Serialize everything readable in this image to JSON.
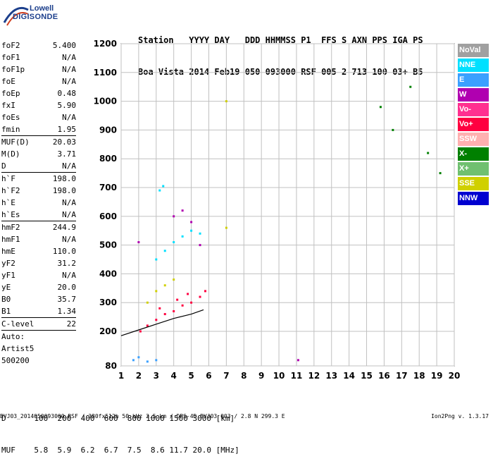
{
  "logo": {
    "line1": "Lowell",
    "line2": "DIGISONDE"
  },
  "header": {
    "line1": "Station   YYYY DAY   DDD HHMMSS P1  FFS S AXN PPS IGA PS",
    "line2": "Boa Vista 2014 Feb19 050 093000 RSF 005 2 713 100 03+ B5"
  },
  "params": [
    {
      "k": "foF2",
      "v": "5.400",
      "sep": false
    },
    {
      "k": "foF1",
      "v": "N/A",
      "sep": false
    },
    {
      "k": "foF1p",
      "v": "N/A",
      "sep": false
    },
    {
      "k": "foE",
      "v": "N/A",
      "sep": false
    },
    {
      "k": "foEp",
      "v": "0.48",
      "sep": false
    },
    {
      "k": "fxI",
      "v": "5.90",
      "sep": false
    },
    {
      "k": "foEs",
      "v": "N/A",
      "sep": false
    },
    {
      "k": "fmin",
      "v": "1.95",
      "sep": true
    },
    {
      "k": "MUF(D)",
      "v": "20.03",
      "sep": false
    },
    {
      "k": "M(D)",
      "v": "3.71",
      "sep": false
    },
    {
      "k": "D",
      "v": "N/A",
      "sep": true
    },
    {
      "k": "h`F",
      "v": "198.0",
      "sep": false
    },
    {
      "k": "h`F2",
      "v": "198.0",
      "sep": false
    },
    {
      "k": "h`E",
      "v": "N/A",
      "sep": false
    },
    {
      "k": "h`Es",
      "v": "N/A",
      "sep": true
    },
    {
      "k": "hmF2",
      "v": "244.9",
      "sep": false
    },
    {
      "k": "hmF1",
      "v": "N/A",
      "sep": false
    },
    {
      "k": "hmE",
      "v": "110.0",
      "sep": false
    },
    {
      "k": "yF2",
      "v": "31.2",
      "sep": false
    },
    {
      "k": "yF1",
      "v": "N/A",
      "sep": false
    },
    {
      "k": "yE",
      "v": "20.0",
      "sep": false
    },
    {
      "k": "B0",
      "v": "35.7",
      "sep": false
    },
    {
      "k": "B1",
      "v": "1.34",
      "sep": true
    },
    {
      "k": "C-level",
      "v": "22",
      "sep": true
    }
  ],
  "auto": {
    "l1": "Auto:",
    "l2": "Artist5",
    "l3": "500200"
  },
  "legend": [
    {
      "label": "NoVal",
      "color": "#a0a0a0"
    },
    {
      "label": "NNE",
      "color": "#00e0ff"
    },
    {
      "label": "E",
      "color": "#3aa0ff"
    },
    {
      "label": "W",
      "color": "#b000b0"
    },
    {
      "label": "Vo-",
      "color": "#ff3090"
    },
    {
      "label": "Vo+",
      "color": "#ff0040"
    },
    {
      "label": "SSW",
      "color": "#ffb0b0"
    },
    {
      "label": "X-",
      "color": "#008000"
    },
    {
      "label": "X+",
      "color": "#70c070"
    },
    {
      "label": "SSE",
      "color": "#d0d000"
    },
    {
      "label": "NNW",
      "color": "#0000d0"
    }
  ],
  "chart_data": {
    "type": "scatter",
    "xlabel": "",
    "ylabel": "",
    "xlim": [
      1,
      20
    ],
    "ylim": [
      80,
      1200
    ],
    "xticks": [
      1,
      2,
      3,
      4,
      5,
      6,
      7,
      8,
      9,
      10,
      11,
      12,
      13,
      14,
      15,
      16,
      17,
      18,
      19,
      20
    ],
    "yticks": [
      80,
      200,
      300,
      400,
      500,
      600,
      700,
      800,
      900,
      1000,
      1100,
      1200
    ],
    "grid": true,
    "series": [
      {
        "color": "#ff0040",
        "points": [
          [
            2.1,
            200
          ],
          [
            2.5,
            220
          ],
          [
            3.0,
            240
          ],
          [
            3.5,
            260
          ],
          [
            4.0,
            270
          ],
          [
            4.5,
            290
          ],
          [
            5.0,
            300
          ],
          [
            5.5,
            320
          ],
          [
            5.8,
            340
          ],
          [
            3.2,
            280
          ],
          [
            4.2,
            310
          ],
          [
            4.8,
            330
          ]
        ]
      },
      {
        "color": "#00e0ff",
        "points": [
          [
            3.0,
            450
          ],
          [
            3.5,
            480
          ],
          [
            4.0,
            510
          ],
          [
            4.5,
            530
          ],
          [
            5.0,
            550
          ],
          [
            5.5,
            540
          ],
          [
            3.2,
            690
          ],
          [
            3.4,
            705
          ]
        ]
      },
      {
        "color": "#d0d000",
        "points": [
          [
            3.0,
            340
          ],
          [
            3.5,
            360
          ],
          [
            4.0,
            380
          ],
          [
            2.5,
            300
          ],
          [
            7.0,
            560
          ],
          [
            7.0,
            1000
          ]
        ]
      },
      {
        "color": "#b000b0",
        "points": [
          [
            4.0,
            600
          ],
          [
            4.5,
            620
          ],
          [
            5.0,
            580
          ],
          [
            5.5,
            500
          ],
          [
            2.0,
            510
          ],
          [
            11.1,
            100
          ]
        ]
      },
      {
        "color": "#008000",
        "points": [
          [
            15.8,
            980
          ],
          [
            16.5,
            900
          ],
          [
            17.5,
            1050
          ],
          [
            18.5,
            820
          ],
          [
            19.2,
            750
          ]
        ]
      },
      {
        "color": "#3aa0ff",
        "points": [
          [
            2.0,
            110
          ],
          [
            2.5,
            95
          ],
          [
            3.0,
            100
          ],
          [
            1.7,
            100
          ]
        ]
      }
    ],
    "line": {
      "color": "#000000",
      "points": [
        [
          1.0,
          185
        ],
        [
          2.0,
          205
        ],
        [
          3.0,
          225
        ],
        [
          4.0,
          245
        ],
        [
          5.0,
          260
        ],
        [
          5.7,
          275
        ]
      ]
    }
  },
  "footer": {
    "line1": "D      100  200  400  600  800 1000 1500 3000 [km]",
    "line2": "MUF    5.8  5.9  6.2  6.7  7.5  8.6 11.7 20.0 [MHz]",
    "line3": "BVJ03_2014050093000.RSF / 380fx512h 50 kHz 2.5 km / DPS-4D BVJ03 003 / 2.8 N 299.3 E",
    "version": "Ion2Png v. 1.3.17"
  }
}
